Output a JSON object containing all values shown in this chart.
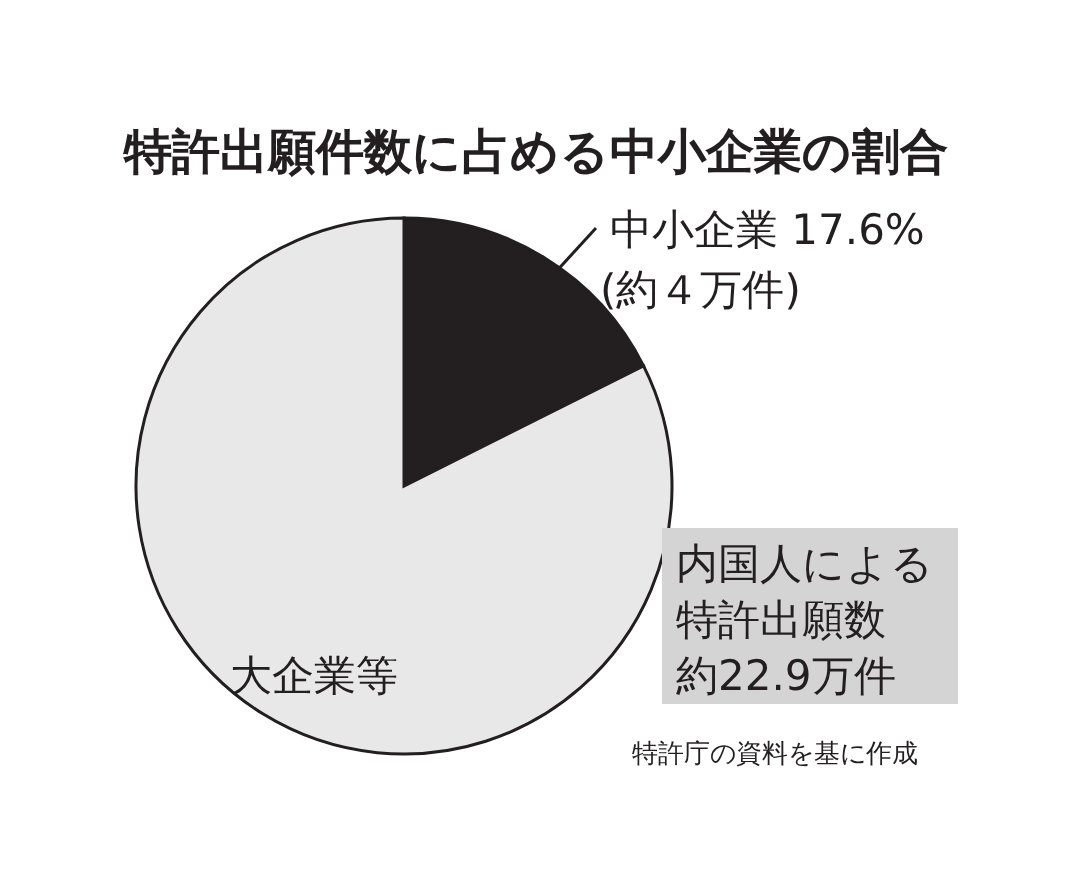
{
  "chart_data": {
    "type": "pie",
    "title": "特許出願件数に占める中小企業の割合",
    "categories": [
      "中小企業",
      "大企業等"
    ],
    "values": [
      17.6,
      82.4
    ],
    "colors": [
      "#231f20",
      "#e8e8e8"
    ],
    "value_labels": [
      "17.6%",
      null
    ],
    "annotations": [
      "(約４万件)",
      "内国人による",
      "特許出願数",
      "約22.9万件",
      "特許庁の資料を基に作成"
    ]
  }
}
